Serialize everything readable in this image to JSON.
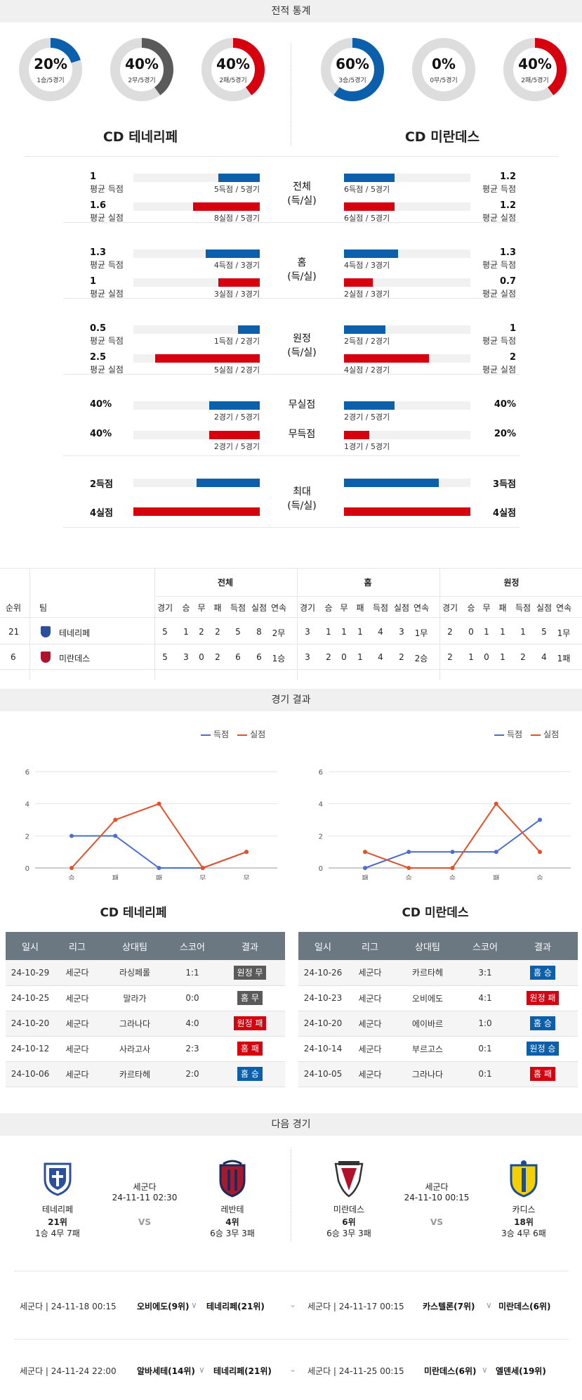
{
  "colors": {
    "blue": "#0b5fab",
    "red": "#d7000f",
    "gray": "#5a5a5a",
    "ring": "#dddddd",
    "scored_line": "#4a6fd1",
    "conceded_line": "#e1522b"
  },
  "sections": {
    "record_stats": "전적 통계",
    "match_results": "경기 결과",
    "next_matches": "다음 경기"
  },
  "teams": {
    "home": "CD 테네리페",
    "away": "CD 미란데스"
  },
  "donuts": [
    {
      "pct": "20%",
      "sub": "1승/5경기",
      "frac": 0.2,
      "color": "#0b5fab"
    },
    {
      "pct": "40%",
      "sub": "2무/5경기",
      "frac": 0.4,
      "color": "#5a5a5a"
    },
    {
      "pct": "40%",
      "sub": "2패/5경기",
      "frac": 0.4,
      "color": "#d7000f"
    },
    {
      "pct": "60%",
      "sub": "3승/5경기",
      "frac": 0.6,
      "color": "#0b5fab"
    },
    {
      "pct": "0%",
      "sub": "0무/5경기",
      "frac": 0.0,
      "color": "#5a5a5a"
    },
    {
      "pct": "40%",
      "sub": "2패/5경기",
      "frac": 0.4,
      "color": "#d7000f"
    }
  ],
  "stat_groups": [
    {
      "cat1": "전체",
      "cat2": "(득/실)",
      "rows": [
        {
          "lv": "1",
          "ll": "평균 득점",
          "lc": "5득점 / 5경기",
          "lf": 0.33,
          "lcol": "#0b5fab",
          "rv": "1.2",
          "rl": "평균 득점",
          "rc": "6득점 / 5경기",
          "rf": 0.4,
          "rcol": "#0b5fab"
        },
        {
          "lv": "1.6",
          "ll": "평균 실점",
          "lc": "8실점 / 5경기",
          "lf": 0.53,
          "lcol": "#d7000f",
          "rv": "1.2",
          "rl": "평균 실점",
          "rc": "6실점 / 5경기",
          "rf": 0.4,
          "rcol": "#d7000f"
        }
      ]
    },
    {
      "cat1": "홈",
      "cat2": "(득/실)",
      "rows": [
        {
          "lv": "1.3",
          "ll": "평균 득점",
          "lc": "4득점 / 3경기",
          "lf": 0.43,
          "lcol": "#0b5fab",
          "rv": "1.3",
          "rl": "평균 득점",
          "rc": "4득점 / 3경기",
          "rf": 0.43,
          "rcol": "#0b5fab"
        },
        {
          "lv": "1",
          "ll": "평균 실점",
          "lc": "3실점 / 3경기",
          "lf": 0.33,
          "lcol": "#d7000f",
          "rv": "0.7",
          "rl": "평균 실점",
          "rc": "2실점 / 3경기",
          "rf": 0.23,
          "rcol": "#d7000f"
        }
      ]
    },
    {
      "cat1": "원정",
      "cat2": "(득/실)",
      "rows": [
        {
          "lv": "0.5",
          "ll": "평균 득점",
          "lc": "1득점 / 2경기",
          "lf": 0.17,
          "lcol": "#0b5fab",
          "rv": "1",
          "rl": "평균 득점",
          "rc": "2득점 / 2경기",
          "rf": 0.33,
          "rcol": "#0b5fab"
        },
        {
          "lv": "2.5",
          "ll": "평균 실점",
          "lc": "5실점 / 2경기",
          "lf": 0.83,
          "lcol": "#d7000f",
          "rv": "2",
          "rl": "평균 실점",
          "rc": "4실점 / 2경기",
          "rf": 0.67,
          "rcol": "#d7000f"
        }
      ]
    },
    {
      "cat1": "무실점",
      "cat2": "",
      "rows": [
        {
          "lv": "40%",
          "ll": "",
          "lc": "2경기 / 5경기",
          "lf": 0.4,
          "lcol": "#0b5fab",
          "rv": "40%",
          "rl": "",
          "rc": "2경기 / 5경기",
          "rf": 0.4,
          "rcol": "#0b5fab"
        }
      ]
    },
    {
      "cat1": "무득점",
      "cat2": "",
      "rows": [
        {
          "lv": "40%",
          "ll": "",
          "lc": "2경기 / 5경기",
          "lf": 0.4,
          "lcol": "#d7000f",
          "rv": "20%",
          "rl": "",
          "rc": "1경기 / 5경기",
          "rf": 0.2,
          "rcol": "#d7000f"
        }
      ]
    },
    {
      "cat1": "최대",
      "cat2": "(득/실)",
      "rows": [
        {
          "lv": "2득점",
          "ll": "",
          "lc": "",
          "lf": 0.5,
          "lcol": "#0b5fab",
          "rv": "3득점",
          "rl": "",
          "rc": "",
          "rf": 0.75,
          "rcol": "#0b5fab"
        },
        {
          "lv": "4실점",
          "ll": "",
          "lc": "",
          "lf": 1.0,
          "lcol": "#d7000f",
          "rv": "4실점",
          "rl": "",
          "rc": "",
          "rf": 1.0,
          "rcol": "#d7000f"
        }
      ]
    }
  ],
  "standings": {
    "groups": [
      "전체",
      "홈",
      "원정"
    ],
    "cols": [
      "경기",
      "승",
      "무",
      "패",
      "득점",
      "실점",
      "연속"
    ],
    "rank_label": "순위",
    "team_label": "팀",
    "rows": [
      {
        "rank": "21",
        "team": "테네리페",
        "total": [
          "5",
          "1",
          "2",
          "2",
          "5",
          "8",
          "2무"
        ],
        "home": [
          "3",
          "1",
          "1",
          "1",
          "4",
          "3",
          "1무"
        ],
        "away": [
          "2",
          "0",
          "1",
          "1",
          "1",
          "5",
          "1무"
        ]
      },
      {
        "rank": "6",
        "team": "미란데스",
        "total": [
          "5",
          "3",
          "0",
          "2",
          "6",
          "6",
          "1승"
        ],
        "home": [
          "3",
          "2",
          "0",
          "1",
          "4",
          "2",
          "2승"
        ],
        "away": [
          "2",
          "1",
          "0",
          "1",
          "2",
          "4",
          "1패"
        ]
      }
    ]
  },
  "legend": {
    "scored": "득점",
    "conceded": "실점"
  },
  "charts": [
    {
      "chart_data": {
        "type": "line",
        "x": [
          "승",
          "패",
          "패",
          "무",
          "무"
        ],
        "series": [
          {
            "name": "득점",
            "values": [
              2,
              2,
              0,
              0,
              1
            ]
          },
          {
            "name": "실점",
            "values": [
              0,
              3,
              4,
              0,
              1
            ]
          }
        ],
        "ylim": [
          0,
          6
        ],
        "yticks": [
          0,
          2,
          4,
          6
        ],
        "grid": true,
        "legend_position": "top-right"
      }
    },
    {
      "chart_data": {
        "type": "line",
        "x": [
          "패",
          "승",
          "승",
          "패",
          "승"
        ],
        "series": [
          {
            "name": "득점",
            "values": [
              0,
              1,
              1,
              1,
              3
            ]
          },
          {
            "name": "실점",
            "values": [
              1,
              0,
              0,
              4,
              1
            ]
          }
        ],
        "ylim": [
          0,
          6
        ],
        "yticks": [
          0,
          2,
          4,
          6
        ],
        "grid": true,
        "legend_position": "top-right"
      }
    }
  ],
  "chart_data": [
    {
      "type": "line",
      "x": [
        "승",
        "패",
        "패",
        "무",
        "무"
      ],
      "series": [
        {
          "name": "득점",
          "values": [
            2,
            2,
            0,
            0,
            1
          ]
        },
        {
          "name": "실점",
          "values": [
            0,
            3,
            4,
            0,
            1
          ]
        }
      ],
      "ylim": [
        0,
        6
      ],
      "legend_position": "top-right"
    },
    {
      "type": "line",
      "x": [
        "패",
        "승",
        "승",
        "패",
        "승"
      ],
      "series": [
        {
          "name": "득점",
          "values": [
            0,
            1,
            1,
            1,
            3
          ]
        },
        {
          "name": "실점",
          "values": [
            1,
            0,
            0,
            4,
            1
          ]
        }
      ],
      "ylim": [
        0,
        6
      ],
      "legend_position": "top-right"
    }
  ],
  "results_header": [
    "일시",
    "리그",
    "상대팀",
    "스코어",
    "결과"
  ],
  "results": [
    {
      "team": "CD 테네리페",
      "rows": [
        {
          "date": "24-10-29",
          "league": "세군다",
          "opp": "라싱페롤",
          "score": "1:1",
          "res": "원정 무",
          "color": "#5a5a5a"
        },
        {
          "date": "24-10-25",
          "league": "세군다",
          "opp": "말라가",
          "score": "0:0",
          "res": "홈 무",
          "color": "#5a5a5a"
        },
        {
          "date": "24-10-20",
          "league": "세군다",
          "opp": "그라나다",
          "score": "4:0",
          "res": "원정 패",
          "color": "#d7000f"
        },
        {
          "date": "24-10-12",
          "league": "세군다",
          "opp": "사라고사",
          "score": "2:3",
          "res": "홈 패",
          "color": "#d7000f"
        },
        {
          "date": "24-10-06",
          "league": "세군다",
          "opp": "카르타헤",
          "score": "2:0",
          "res": "홈 승",
          "color": "#0b5fab"
        }
      ]
    },
    {
      "team": "CD 미란데스",
      "rows": [
        {
          "date": "24-10-26",
          "league": "세군다",
          "opp": "카르타헤",
          "score": "3:1",
          "res": "홈 승",
          "color": "#0b5fab"
        },
        {
          "date": "24-10-23",
          "league": "세군다",
          "opp": "오비에도",
          "score": "4:1",
          "res": "원정 패",
          "color": "#d7000f"
        },
        {
          "date": "24-10-20",
          "league": "세군다",
          "opp": "에이바르",
          "score": "1:0",
          "res": "홈 승",
          "color": "#0b5fab"
        },
        {
          "date": "24-10-14",
          "league": "세군다",
          "opp": "부르고스",
          "score": "0:1",
          "res": "원정 승",
          "color": "#0b5fab"
        },
        {
          "date": "24-10-05",
          "league": "세군다",
          "opp": "그라나다",
          "score": "0:1",
          "res": "홈 패",
          "color": "#d7000f"
        }
      ]
    }
  ],
  "next": [
    {
      "league": "세군다",
      "dt": "24-11-11 02:30",
      "vs": "VS",
      "home": {
        "name": "테네리페",
        "rank": "21위",
        "rec": "1승 4무 7패"
      },
      "away": {
        "name": "레반테",
        "rank": "4위",
        "rec": "6승 3무 3패"
      }
    },
    {
      "league": "세군다",
      "dt": "24-11-10 00:15",
      "vs": "VS",
      "home": {
        "name": "미란데스",
        "rank": "6위",
        "rec": "6승 3무 3패"
      },
      "away": {
        "name": "카디스",
        "rank": "18위",
        "rec": "3승 4무 6패"
      }
    }
  ],
  "fixtures": [
    {
      "left": {
        "info": "세군다 | 24-11-18 00:15",
        "t1": "오비에도(9위)",
        "t2": "테네리페(21위)"
      },
      "right": {
        "info": "세군다 | 24-11-17 00:15",
        "t1": "카스텔론(7위)",
        "t2": "미란데스(6위)"
      }
    },
    {
      "left": {
        "info": "세군다 | 24-11-24 22:00",
        "t1": "알바세테(14위)",
        "t2": "테네리페(21위)"
      },
      "right": {
        "info": "세군다 | 24-11-25 00:15",
        "t1": "미란데스(6위)",
        "t2": "엘덴세(19위)"
      }
    }
  ]
}
